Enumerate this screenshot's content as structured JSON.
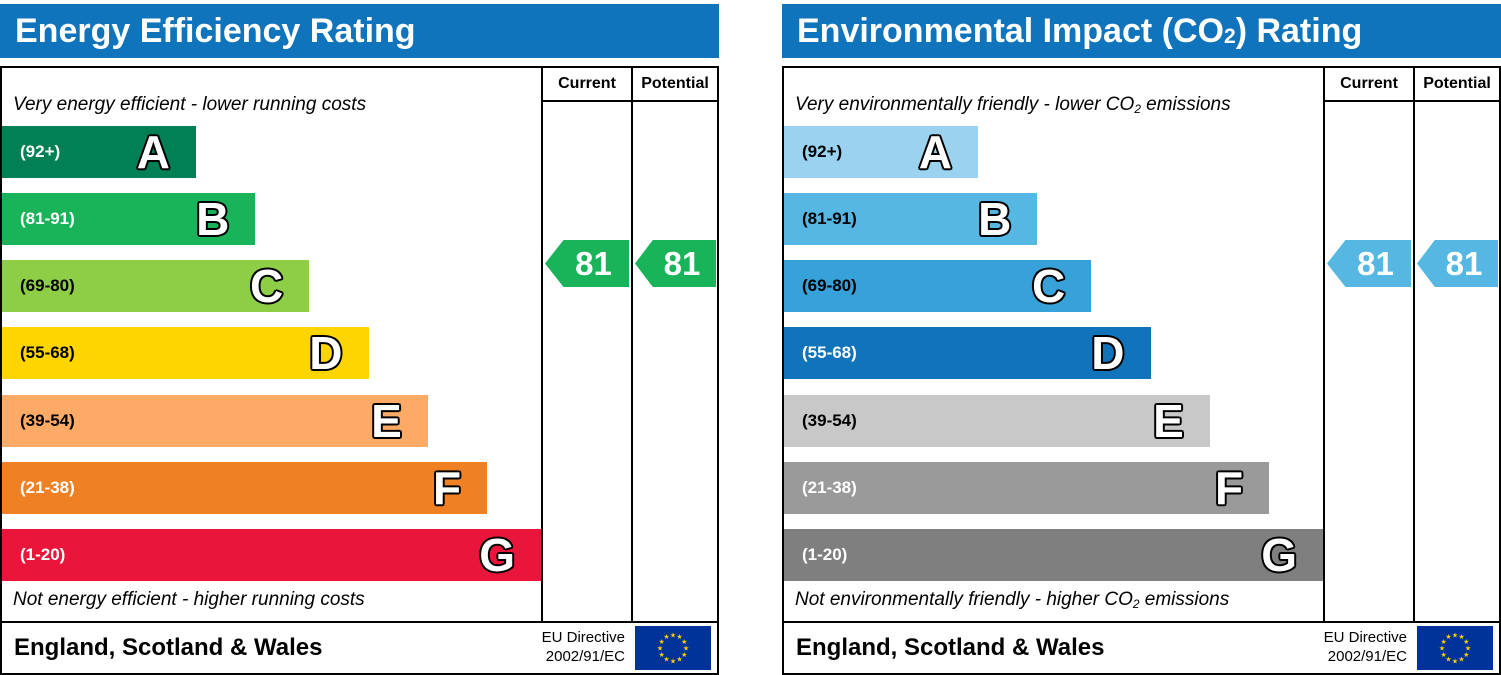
{
  "chart_data": [
    {
      "type": "bar",
      "title": "Energy Efficiency Rating",
      "categories": [
        "A (92+)",
        "B (81-91)",
        "C (69-80)",
        "D (55-68)",
        "E (39-54)",
        "F (21-38)",
        "G (1-20)"
      ],
      "values": [
        36,
        47,
        57,
        68,
        79,
        90,
        100
      ],
      "values_note": "relative band bar lengths as % of scale width",
      "current": 81,
      "potential": 81,
      "current_band": "B",
      "potential_band": "B",
      "top_note": "Very energy efficient - lower running costs",
      "bottom_note": "Not energy efficient - higher running costs",
      "region": "England, Scotland & Wales",
      "directive": "EU Directive 2002/91/EC",
      "legend_position": "right",
      "grid": false
    },
    {
      "type": "bar",
      "title": "Environmental Impact (CO2) Rating",
      "categories": [
        "A (92+)",
        "B (81-91)",
        "C (69-80)",
        "D (55-68)",
        "E (39-54)",
        "F (21-38)",
        "G (1-20)"
      ],
      "values": [
        36,
        47,
        57,
        68,
        79,
        90,
        100
      ],
      "values_note": "relative band bar lengths as % of scale width",
      "current": 81,
      "potential": 81,
      "current_band": "B",
      "potential_band": "B",
      "top_note": "Very environmentally friendly - lower CO2 emissions",
      "bottom_note": "Not environmentally friendly - higher CO2 emissions",
      "region": "England, Scotland & Wales",
      "directive": "EU Directive 2002/91/EC",
      "legend_position": "right",
      "grid": false
    }
  ],
  "panels": [
    {
      "header_color": "#1074bc",
      "title": {
        "pre": "Energy Efficiency Rating",
        "sub": "",
        "post": ""
      },
      "columns": {
        "current": "Current",
        "potential": "Potential"
      },
      "top_note": {
        "pre": "Very energy efficient - lower running costs",
        "sub": "",
        "post": ""
      },
      "bottom_note": {
        "pre": "Not energy efficient - higher running costs",
        "sub": "",
        "post": ""
      },
      "bands": [
        {
          "range": "(92+)",
          "letter": "A",
          "color": "#008054",
          "width_pct": 36,
          "label_color": "#ffffff"
        },
        {
          "range": "(81-91)",
          "letter": "B",
          "color": "#19b459",
          "width_pct": 47,
          "label_color": "#ffffff"
        },
        {
          "range": "(69-80)",
          "letter": "C",
          "color": "#8dce46",
          "width_pct": 57,
          "label_color": "#000000"
        },
        {
          "range": "(55-68)",
          "letter": "D",
          "color": "#ffd500",
          "width_pct": 68,
          "label_color": "#000000"
        },
        {
          "range": "(39-54)",
          "letter": "E",
          "color": "#fcaa65",
          "width_pct": 79,
          "label_color": "#000000"
        },
        {
          "range": "(21-38)",
          "letter": "F",
          "color": "#ef8023",
          "width_pct": 90,
          "label_color": "#ffffff"
        },
        {
          "range": "(1-20)",
          "letter": "G",
          "color": "#e9153b",
          "width_pct": 100,
          "label_color": "#ffffff"
        }
      ],
      "current": {
        "value": "81",
        "color": "#19b459"
      },
      "potential": {
        "value": "81",
        "color": "#19b459"
      },
      "footer": {
        "region": "England, Scotland & Wales",
        "directive_line1": "EU Directive",
        "directive_line2": "2002/91/EC",
        "flag_icon": "eu-flag",
        "flag_bg": "#003399",
        "flag_star_color": "#ffcc00"
      }
    },
    {
      "header_color": "#1074bc",
      "title": {
        "pre": "Environmental Impact (CO",
        "sub": "2",
        "post": ") Rating"
      },
      "columns": {
        "current": "Current",
        "potential": "Potential"
      },
      "top_note": {
        "pre": "Very environmentally friendly - lower CO",
        "sub": "2",
        "post": " emissions"
      },
      "bottom_note": {
        "pre": "Not environmentally friendly - higher CO",
        "sub": "2",
        "post": " emissions"
      },
      "bands": [
        {
          "range": "(92+)",
          "letter": "A",
          "color": "#9ad2ef",
          "width_pct": 36,
          "label_color": "#000000"
        },
        {
          "range": "(81-91)",
          "letter": "B",
          "color": "#55b7e2",
          "width_pct": 47,
          "label_color": "#000000"
        },
        {
          "range": "(69-80)",
          "letter": "C",
          "color": "#37a1d9",
          "width_pct": 57,
          "label_color": "#000000"
        },
        {
          "range": "(55-68)",
          "letter": "D",
          "color": "#1173b9",
          "width_pct": 68,
          "label_color": "#ffffff"
        },
        {
          "range": "(39-54)",
          "letter": "E",
          "color": "#c8c8c8",
          "width_pct": 79,
          "label_color": "#000000"
        },
        {
          "range": "(21-38)",
          "letter": "F",
          "color": "#9a9a9a",
          "width_pct": 90,
          "label_color": "#ffffff"
        },
        {
          "range": "(1-20)",
          "letter": "G",
          "color": "#7f7f7f",
          "width_pct": 100,
          "label_color": "#ffffff"
        }
      ],
      "current": {
        "value": "81",
        "color": "#55b7e2"
      },
      "potential": {
        "value": "81",
        "color": "#55b7e2"
      },
      "footer": {
        "region": "England, Scotland & Wales",
        "directive_line1": "EU Directive",
        "directive_line2": "2002/91/EC",
        "flag_icon": "eu-flag",
        "flag_bg": "#003399",
        "flag_star_color": "#ffcc00"
      }
    }
  ]
}
